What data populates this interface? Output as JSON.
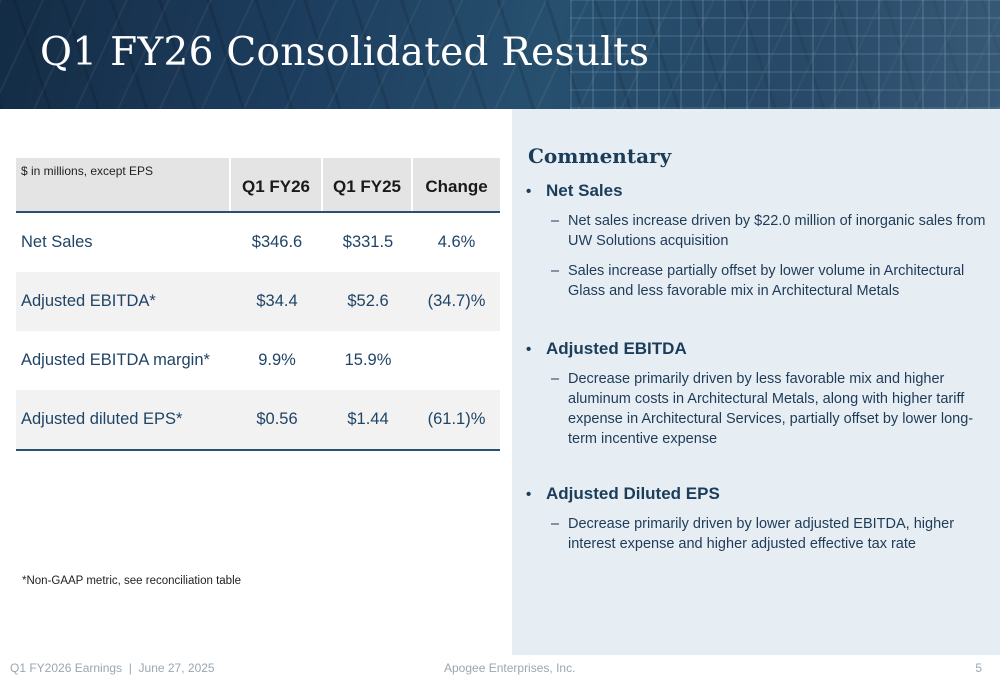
{
  "header": {
    "title": "Q1 FY26 Consolidated Results"
  },
  "table": {
    "caption": "$ in millions, except EPS",
    "columns": [
      "Q1 FY26",
      "Q1 FY25",
      "Change"
    ],
    "rows": [
      {
        "label": "Net Sales",
        "q1fy26": "$346.6",
        "q1fy25": "$331.5",
        "change": "4.6%"
      },
      {
        "label": "Adjusted EBITDA*",
        "q1fy26": "$34.4",
        "q1fy25": "$52.6",
        "change": "(34.7)%"
      },
      {
        "label": "Adjusted EBITDA margin*",
        "q1fy26": "9.9%",
        "q1fy25": "15.9%",
        "change": ""
      },
      {
        "label": "Adjusted diluted EPS*",
        "q1fy26": "$0.56",
        "q1fy25": "$1.44",
        "change": "(61.1)%"
      }
    ]
  },
  "footnote": "*Non-GAAP metric, see reconciliation table",
  "commentary": {
    "title": "Commentary",
    "bullet": "•",
    "dash": "–",
    "sections": [
      {
        "heading": "Net Sales",
        "points": [
          "Net sales increase driven by $22.0 million of inorganic sales from UW Solutions acquisition",
          "Sales increase partially offset by lower volume in Architectural Glass and less favorable mix in Architectural Metals"
        ]
      },
      {
        "heading": "Adjusted EBITDA",
        "points": [
          "Decrease primarily driven by less favorable mix and higher aluminum costs in Architectural Metals, along with higher tariff expense in Architectural Services, partially offset by lower long-term incentive expense"
        ]
      },
      {
        "heading": "Adjusted Diluted EPS",
        "points": [
          "Decrease primarily driven by lower adjusted EBITDA, higher interest expense and higher adjusted effective tax rate"
        ]
      }
    ]
  },
  "footer": {
    "left": "Q1 FY2026 Earnings  |  June 27, 2025",
    "center": "Apogee Enterprises, Inc.",
    "page": "5"
  }
}
